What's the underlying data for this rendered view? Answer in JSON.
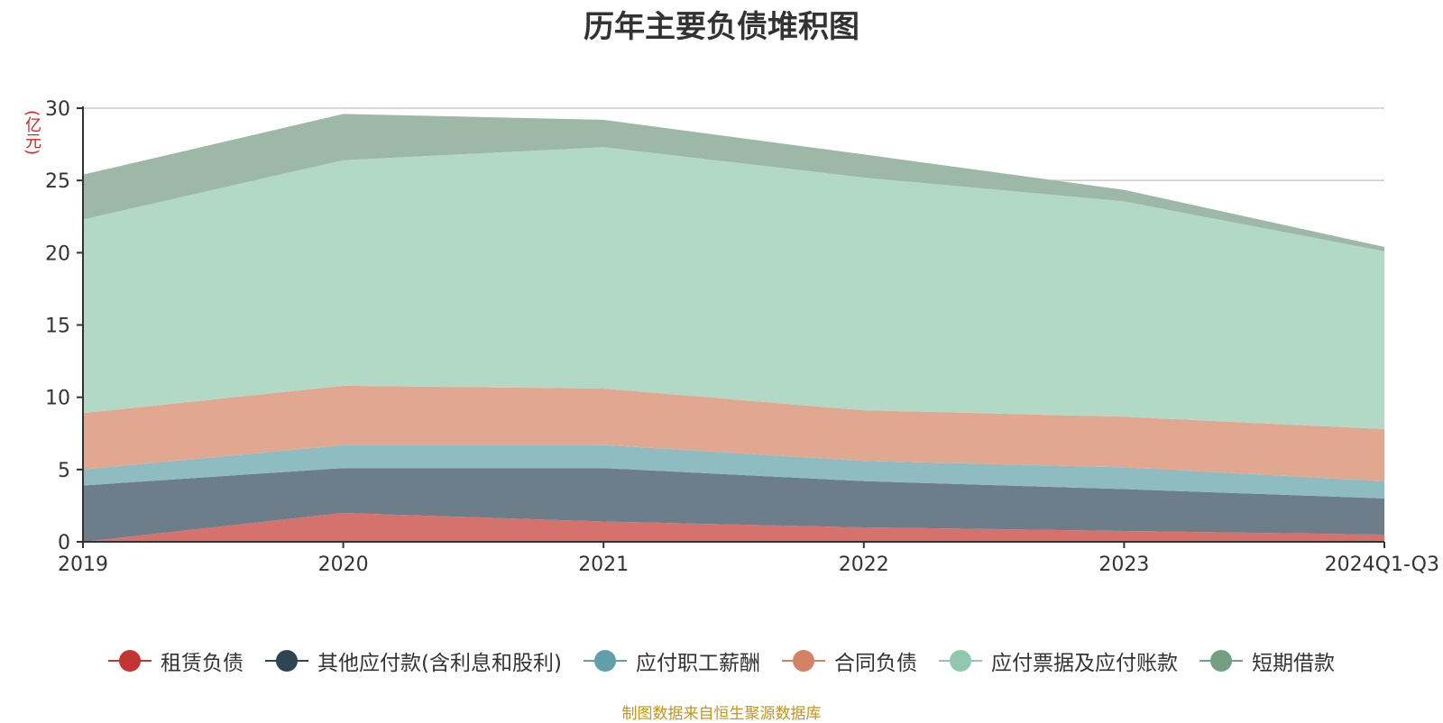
{
  "colors": {
    "text": "#333333",
    "axis": "#333333",
    "grid": "#cccccc",
    "unit": "#e02020",
    "source": "#c9931a"
  },
  "chart_data": {
    "type": "area",
    "stacked": true,
    "title": "历年主要负债堆积图",
    "ylabel": "(亿元)",
    "xlabel": "",
    "ylim": [
      0,
      30
    ],
    "yticks": [
      0,
      5,
      10,
      15,
      20,
      25,
      30
    ],
    "grid": true,
    "legend_position": "bottom",
    "categories": [
      "2019",
      "2020",
      "2021",
      "2022",
      "2023",
      "2024Q1-Q3"
    ],
    "series": [
      {
        "name": "租赁负债",
        "color": "#c23531",
        "fill": "#d6726e",
        "values": [
          0.0,
          2.0,
          1.4,
          1.0,
          0.75,
          0.5
        ]
      },
      {
        "name": "其他应付款(含利息和股利)",
        "color": "#2f4554",
        "fill": "#6d7d89",
        "values": [
          3.9,
          3.1,
          3.7,
          3.2,
          2.9,
          2.5
        ]
      },
      {
        "name": "应付职工薪酬",
        "color": "#61a0a8",
        "fill": "#8fbcc1",
        "values": [
          1.1,
          1.6,
          1.6,
          1.4,
          1.5,
          1.2
        ]
      },
      {
        "name": "合同负债",
        "color": "#d48265",
        "fill": "#e1a791",
        "values": [
          3.9,
          4.1,
          3.9,
          3.5,
          3.5,
          3.6
        ]
      },
      {
        "name": "应付票据及应付账款",
        "color": "#91c7ae",
        "fill": "#b2d9c6",
        "values": [
          13.4,
          15.6,
          16.7,
          16.1,
          14.9,
          12.3
        ]
      },
      {
        "name": "短期借款",
        "color": "#749f83",
        "fill": "#9db8a7",
        "values": [
          3.1,
          3.2,
          1.9,
          1.6,
          0.8,
          0.3
        ]
      }
    ]
  },
  "source_note": "制图数据来自恒生聚源数据库"
}
